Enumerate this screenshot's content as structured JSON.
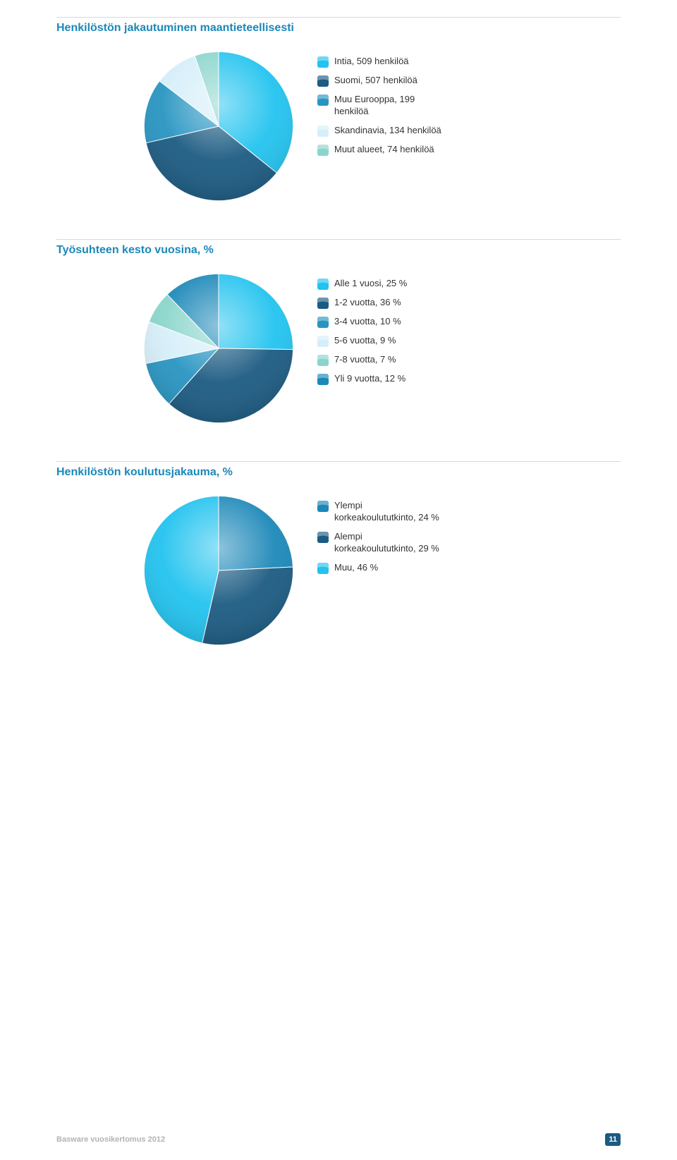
{
  "sections": [
    {
      "title": "Henkilöstön jakautuminen maantieteellisesti",
      "title_color": "#1C88B8",
      "chart": {
        "type": "pie",
        "diameter": 220,
        "start_angle_deg": -90,
        "background_color": "#ffffff",
        "slices": [
          {
            "label": "Intia, 509 henkilöä",
            "value": 509,
            "color": "#22C3EF"
          },
          {
            "label": "Suomi, 507 henkilöä",
            "value": 507,
            "color": "#1C5B82"
          },
          {
            "label": "Muu Eurooppa, 199 henkilöä",
            "value": 199,
            "color": "#2895C1",
            "label_multiline": [
              "Muu Eurooppa, 199",
              "henkilöä"
            ]
          },
          {
            "label": "Skandinavia, 134 henkilöä",
            "value": 134,
            "color": "#D5EEF9"
          },
          {
            "label": "Muut alueet, 74 henkilöä",
            "value": 74,
            "color": "#8AD5CB"
          }
        ]
      }
    },
    {
      "title": "Työsuhteen kesto vuosina, %",
      "title_color": "#1C88B8",
      "chart": {
        "type": "pie",
        "diameter": 220,
        "start_angle_deg": -90,
        "background_color": "#ffffff",
        "slices": [
          {
            "label": "Alle 1 vuosi, 25 %",
            "value": 25,
            "color": "#22C3EF"
          },
          {
            "label": "1-2 vuotta, 36 %",
            "value": 36,
            "color": "#1C5B82"
          },
          {
            "label": "3-4 vuotta, 10 %",
            "value": 10,
            "color": "#2895C1"
          },
          {
            "label": "5-6 vuotta, 9 %",
            "value": 9,
            "color": "#D5EEF9"
          },
          {
            "label": "7-8 vuotta, 7 %",
            "value": 7,
            "color": "#8AD5CB"
          },
          {
            "label": "Yli 9 vuotta, 12 %",
            "value": 12,
            "color": "#1C88B8"
          }
        ]
      }
    },
    {
      "title": "Henkilöstön koulutusjakauma, %",
      "title_color": "#1C88B8",
      "chart": {
        "type": "pie",
        "diameter": 220,
        "start_angle_deg": -90,
        "background_color": "#ffffff",
        "slices": [
          {
            "label": "Ylempi korkeakoulututkinto, 24 %",
            "value": 24,
            "color": "#1C88B8",
            "label_multiline": [
              "Ylempi",
              "korkeakoulututkinto, 24 %"
            ]
          },
          {
            "label": "Alempi korkeakoulututkinto, 29 %",
            "value": 29,
            "color": "#1C5B82",
            "label_multiline": [
              "Alempi",
              "korkeakoulututkinto, 29 %"
            ]
          },
          {
            "label": "Muu, 46 %",
            "value": 46,
            "color": "#22C3EF"
          }
        ]
      }
    }
  ],
  "footer": {
    "text": "Basware vuosikertomus 2012",
    "page_number": "11",
    "page_number_bg": "#1C5B82",
    "page_number_fg": "#ffffff"
  },
  "swatch": {
    "size": 16,
    "corner_radius": 3,
    "highlight_color": "rgba(255,255,255,0.35)"
  }
}
